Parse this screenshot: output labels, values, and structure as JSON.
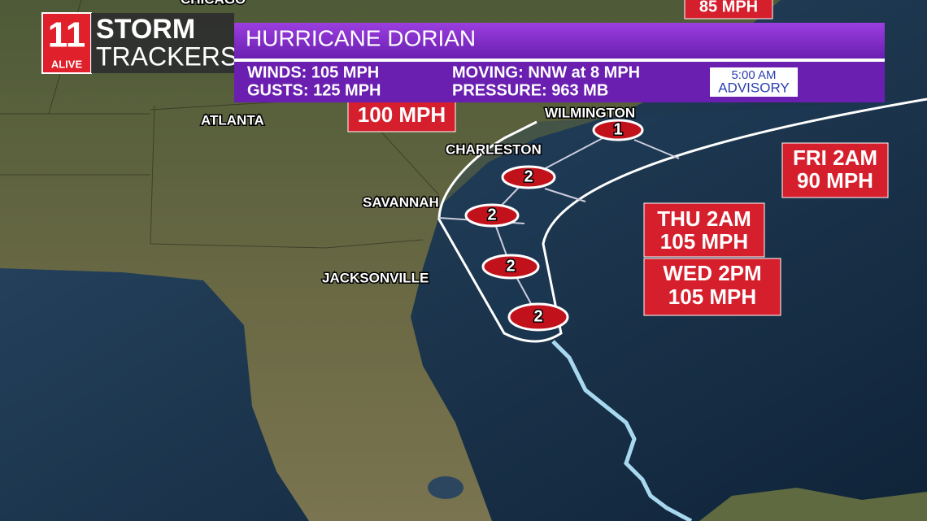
{
  "logo": {
    "channel": "11",
    "station": "ALIVE",
    "brand_top": "STORM",
    "brand_bottom": "TRACKERS"
  },
  "advisory": {
    "title": "HURRICANE DORIAN",
    "winds": "WINDS: 105 MPH",
    "moving": "MOVING: NNW at 8 MPH",
    "gusts": "GUSTS: 125 MPH",
    "pressure": "PRESSURE: 963 MB",
    "time": "5:00 AM",
    "label": "ADVISORY"
  },
  "cities": [
    "CHICAGO",
    "ATLANTA",
    "WILMINGTON",
    "CHARLESTON",
    "SAVANNAH",
    "JACKSONVILLE"
  ],
  "forecast_points": [
    {
      "intensity": "85 MPH"
    },
    {
      "intensity": "100 MPH"
    },
    {
      "time": "FRI 2AM",
      "intensity": "90 MPH"
    },
    {
      "time": "THU 2AM",
      "intensity": "105 MPH"
    },
    {
      "time": "WED 2PM",
      "intensity": "105 MPH"
    }
  ],
  "storm_icons": [
    {
      "category": "1"
    },
    {
      "category": "2"
    },
    {
      "category": "2"
    },
    {
      "category": "2"
    },
    {
      "category": "2"
    }
  ]
}
